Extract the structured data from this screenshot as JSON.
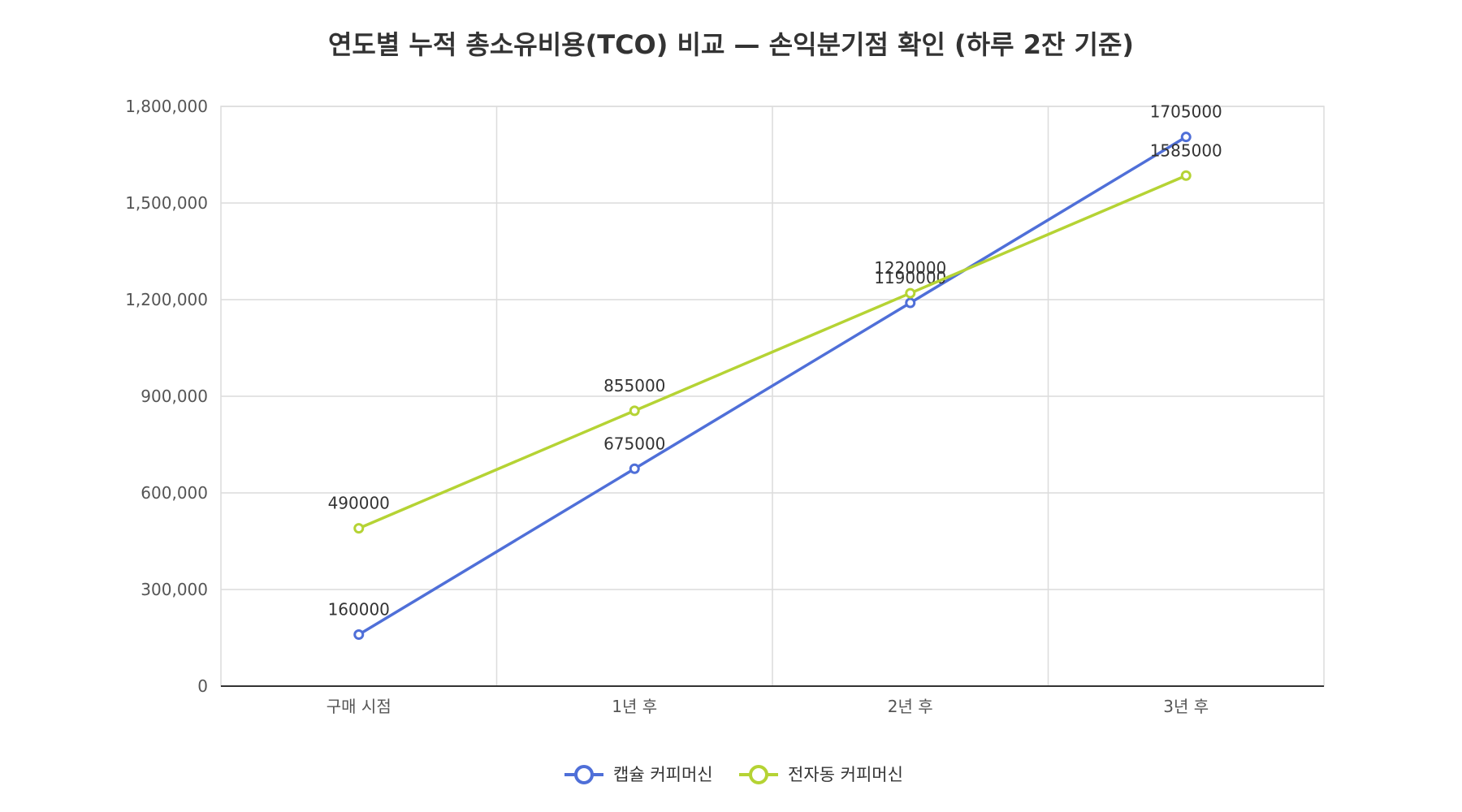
{
  "chart_data": {
    "type": "line",
    "title": "연도별 누적 총소유비용(TCO) 비교 — 손익분기점 확인 (하루 2잔 기준)",
    "xlabel": "",
    "ylabel": "",
    "categories": [
      "구매 시점",
      "1년 후",
      "2년 후",
      "3년 후"
    ],
    "ylim": [
      0,
      1800000
    ],
    "yticks": [
      "0",
      "300,000",
      "600,000",
      "900,000",
      "1,200,000",
      "1,500,000",
      "1,800,000"
    ],
    "ytick_values": [
      0,
      300000,
      600000,
      900000,
      1200000,
      1500000,
      1800000
    ],
    "grid": true,
    "legend_position": "bottom",
    "series": [
      {
        "name": "캡슐 커피머신",
        "color": "#4f6fd8",
        "values": [
          160000,
          675000,
          1190000,
          1705000
        ],
        "labels": [
          "160000",
          "675000",
          "1190000",
          "1705000"
        ]
      },
      {
        "name": "전자동 커피머신",
        "color": "#b5d334",
        "values": [
          490000,
          855000,
          1220000,
          1585000
        ],
        "labels": [
          "490000",
          "855000",
          "1220000",
          "1585000"
        ]
      }
    ]
  }
}
